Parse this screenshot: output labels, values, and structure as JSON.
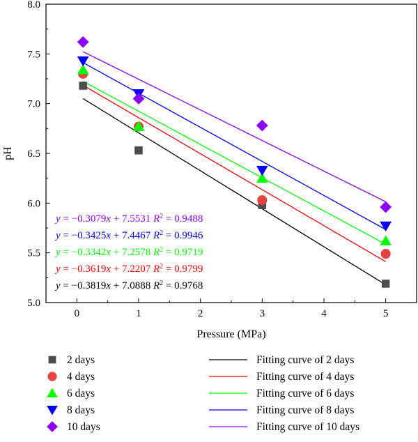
{
  "chart_data": {
    "type": "scatter",
    "xlabel": "Pressure (MPa)",
    "ylabel": "pH",
    "xlim": [
      -0.5,
      5.5
    ],
    "ylim": [
      5.0,
      8.0
    ],
    "xticks": [
      "0",
      "1",
      "2",
      "3",
      "4",
      "5"
    ],
    "yticks": [
      "5.0",
      "5.5",
      "6.0",
      "6.5",
      "7.0",
      "7.5",
      "8.0"
    ],
    "grid": false,
    "legend_position": "below",
    "series": [
      {
        "name": "2 days",
        "marker": "square",
        "color": "#4d4d4d",
        "x": [
          0.1,
          1,
          3,
          5
        ],
        "y": [
          7.18,
          6.53,
          5.98,
          5.19
        ],
        "fit_name": "Fitting curve of 2 days",
        "fit_color": "#000000",
        "fit": {
          "slope": -0.3819,
          "intercept": 7.0888
        },
        "equation": {
          "y_part": "y",
          "x_part": "x",
          "r_part": "R",
          "sq_part": "2",
          "mid": " = −0.3819",
          "tail": " + 7.0888 ",
          "r2": " = 0.9768"
        }
      },
      {
        "name": "4 days",
        "marker": "circle",
        "color": "#e8423f",
        "x": [
          0.1,
          1,
          3,
          5
        ],
        "y": [
          7.3,
          6.77,
          6.03,
          5.49
        ],
        "fit_name": "Fitting curve of 4 days",
        "fit_color": "#ff0000",
        "fit": {
          "slope": -0.3619,
          "intercept": 7.2207
        },
        "equation": {
          "y_part": "y",
          "x_part": "x",
          "r_part": "R",
          "sq_part": "2",
          "mid": " = −0.3619",
          "tail": " + 7.2207 ",
          "r2": " = 0.9799"
        }
      },
      {
        "name": "6 days",
        "marker": "triangle-up",
        "color": "#00ff00",
        "x": [
          0.1,
          1,
          3,
          5
        ],
        "y": [
          7.34,
          6.77,
          6.25,
          5.62
        ],
        "fit_name": "Fitting curve of 6 days",
        "fit_color": "#00ff00",
        "fit": {
          "slope": -0.3342,
          "intercept": 7.2578
        },
        "equation": {
          "y_part": "y",
          "x_part": "x",
          "r_part": "R",
          "sq_part": "2",
          "mid": " = −0.3342",
          "tail": " + 7.2578 ",
          "r2": " = 0.9719"
        }
      },
      {
        "name": "8 days",
        "marker": "triangle-down",
        "color": "#0000ff",
        "x": [
          0.1,
          1,
          3,
          5
        ],
        "y": [
          7.43,
          7.1,
          6.33,
          5.77
        ],
        "fit_name": "Fitting curve of 8 days",
        "fit_color": "#0000ff",
        "fit": {
          "slope": -0.3425,
          "intercept": 7.4467
        },
        "equation": {
          "y_part": "y",
          "x_part": "x",
          "r_part": "R",
          "sq_part": "2",
          "mid": " = −0.3425",
          "tail": " + 7.4467 ",
          "r2": " = 0.9946"
        }
      },
      {
        "name": "10 days",
        "marker": "diamond",
        "color": "#8b00ff",
        "x": [
          0.1,
          1,
          3,
          5
        ],
        "y": [
          7.62,
          7.05,
          6.78,
          5.96
        ],
        "fit_name": "Fitting curve of 10 days",
        "fit_color": "#8b00ff",
        "fit": {
          "slope": -0.3079,
          "intercept": 7.5531
        },
        "equation": {
          "y_part": "y",
          "x_part": "x",
          "r_part": "R",
          "sq_part": "2",
          "mid": " = −0.3079",
          "tail": " + 7.5531 ",
          "r2": " = 0.9488"
        }
      }
    ]
  }
}
